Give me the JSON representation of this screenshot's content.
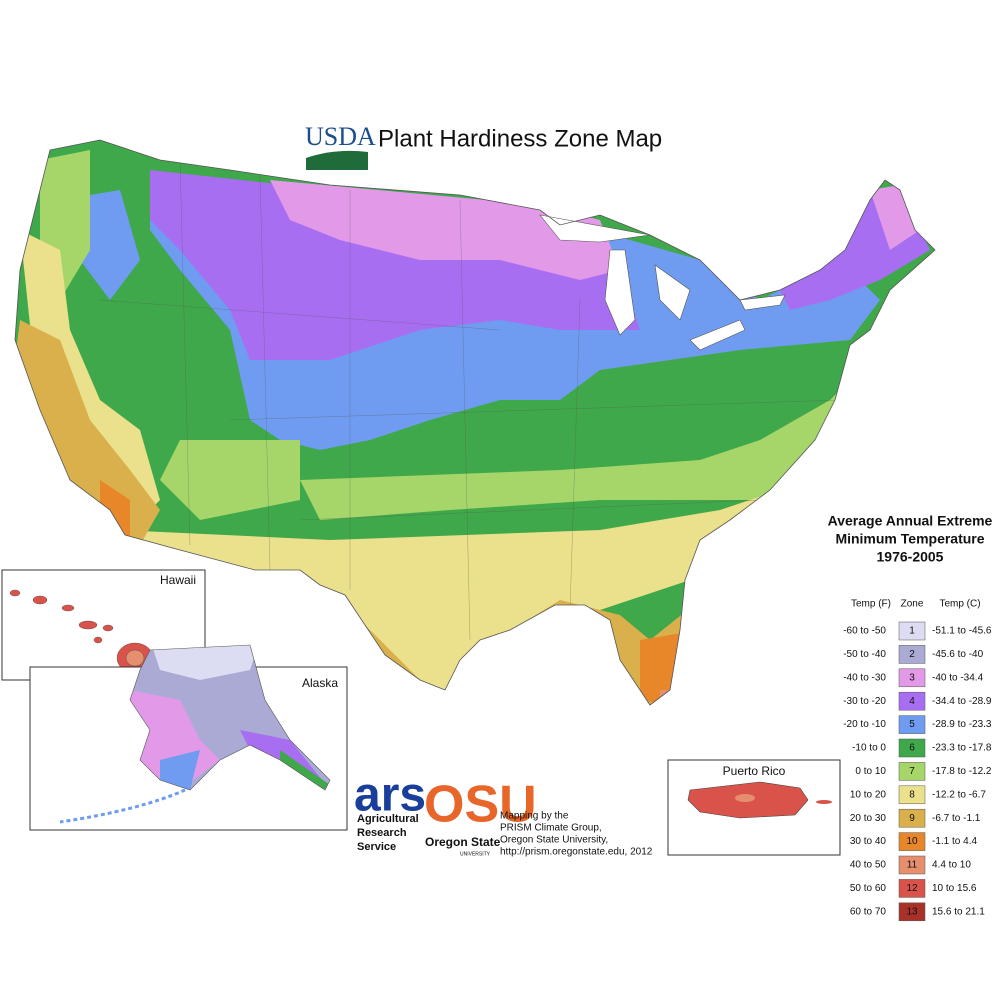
{
  "header": {
    "logo": "USDA",
    "title": "Plant Hardiness Zone Map"
  },
  "legend": {
    "title": [
      "Average Annual Extreme",
      "Minimum Temperature",
      "1976-2005"
    ],
    "columns": [
      "Temp (F)",
      "Zone",
      "Temp (C)"
    ],
    "rows": [
      {
        "temp_f": "-60 to -50",
        "zone": "1",
        "temp_c": "-51.1 to -45.6",
        "color": "#dcdcf2"
      },
      {
        "temp_f": "-50 to -40",
        "zone": "2",
        "temp_c": "-45.6 to -40",
        "color": "#aaaad4"
      },
      {
        "temp_f": "-40 to -30",
        "zone": "3",
        "temp_c": "-40 to -34.4",
        "color": "#e29ae8"
      },
      {
        "temp_f": "-30 to -20",
        "zone": "4",
        "temp_c": "-34.4 to -28.9",
        "color": "#a86ef2"
      },
      {
        "temp_f": "-20 to -10",
        "zone": "5",
        "temp_c": "-28.9 to -23.3",
        "color": "#6f9cf0"
      },
      {
        "temp_f": "-10 to 0",
        "zone": "6",
        "temp_c": "-23.3 to -17.8",
        "color": "#3fa84a"
      },
      {
        "temp_f": "0 to 10",
        "zone": "7",
        "temp_c": "-17.8 to -12.2",
        "color": "#a6d66a"
      },
      {
        "temp_f": "10 to 20",
        "zone": "8",
        "temp_c": "-12.2 to -6.7",
        "color": "#ebe08c"
      },
      {
        "temp_f": "20 to 30",
        "zone": "9",
        "temp_c": "-6.7 to -1.1",
        "color": "#d9b04c"
      },
      {
        "temp_f": "30 to 40",
        "zone": "10",
        "temp_c": "-1.1 to 4.4",
        "color": "#e8872a"
      },
      {
        "temp_f": "40 to 50",
        "zone": "11",
        "temp_c": "4.4 to 10",
        "color": "#e58f6e"
      },
      {
        "temp_f": "50 to 60",
        "zone": "12",
        "temp_c": "10 to 15.6",
        "color": "#d9534a"
      },
      {
        "temp_f": "60 to 70",
        "zone": "13",
        "temp_c": "15.6 to 21.1",
        "color": "#a8322a"
      }
    ]
  },
  "insets": {
    "hawaii": "Hawaii",
    "alaska": "Alaska",
    "puerto_rico": "Puerto Rico"
  },
  "credits": {
    "ars": {
      "logo": "ars",
      "lines": [
        "Agricultural",
        "Research",
        "Service"
      ]
    },
    "osu": {
      "logo": "OSU",
      "lines": [
        "Oregon State",
        "UNIVERSITY"
      ]
    },
    "mapping": [
      "Mapping by the",
      "PRISM Climate Group,",
      "Oregon State University,",
      "http://prism.oregonstate.edu, 2012"
    ]
  }
}
